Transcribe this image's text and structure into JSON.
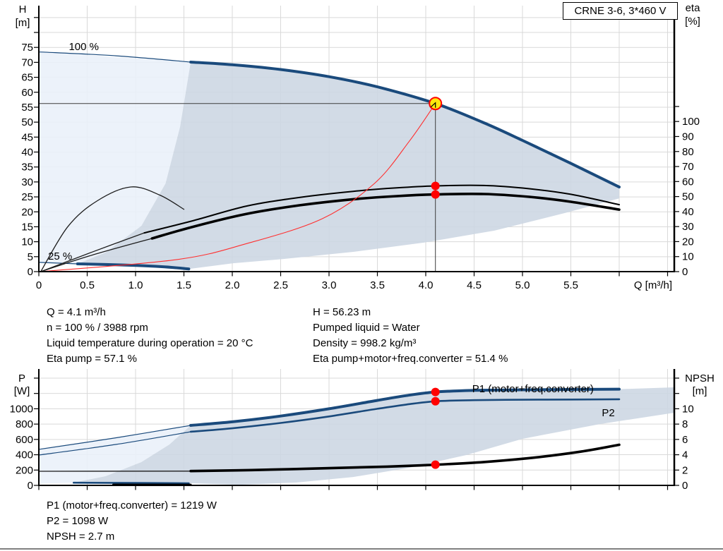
{
  "title_box": "CRNE 3-6, 3*460 V",
  "colors": {
    "curve_blue": "#1a4a7c",
    "envelope_dark": "#ccd6e3",
    "envelope_light": "#e9f0f9",
    "grid": "#d9d9d9",
    "duty_red": "#ff0000",
    "control_red": "#ff3030",
    "marker_yellow": "#ffe70d",
    "axis_black": "#000000",
    "ref_line": "#3c3c3c"
  },
  "chart_data": [
    {
      "type": "line",
      "id": "qh-chart",
      "x": {
        "label": "Q [m³/h]",
        "tick_values": [
          0,
          0.5,
          1,
          1.5,
          2,
          2.5,
          3,
          3.5,
          4,
          4.5,
          5,
          5.5
        ],
        "tick_labels": [
          "0",
          "0.5",
          "1.0",
          "1.5",
          "2.0",
          "2.5",
          "3.0",
          "3.5",
          "4.0",
          "4.5",
          "5.0",
          "5.5"
        ],
        "extra_ticks": [
          6,
          6.5
        ],
        "max": 6.57
      },
      "y_left": {
        "label": [
          "H",
          "[m]"
        ],
        "tick_values": [
          0,
          5,
          10,
          15,
          20,
          25,
          30,
          35,
          40,
          45,
          50,
          55,
          60,
          65,
          70,
          75
        ],
        "extra_ticks": [
          80,
          85
        ],
        "max": 88.9
      },
      "y_right": {
        "label": [
          "eta",
          "[%]"
        ],
        "tick_values": [
          0,
          10,
          20,
          30,
          40,
          50,
          60,
          70,
          80,
          90,
          100
        ],
        "extra_ticks": [
          110
        ],
        "max": 110
      },
      "annotations": [
        {
          "name": "speed-100-label",
          "text": "100 %",
          "q": 0.31,
          "h": 75.3
        },
        {
          "name": "speed-25-label",
          "text": "25 %",
          "q": 0.095,
          "h": 5.2
        }
      ],
      "areas": [
        {
          "name": "envelope-light",
          "axis": "H",
          "fill": "light",
          "points": [
            [
              0,
              73.5
            ],
            [
              1.57,
              70.1
            ],
            [
              1.46,
              48.4
            ],
            [
              1.31,
              29.5
            ],
            [
              1.06,
              15.3
            ],
            [
              0.69,
              6.4
            ],
            [
              0.4,
              2.6
            ],
            [
              0,
              3.1
            ]
          ]
        },
        {
          "name": "envelope-dark",
          "axis": "H",
          "fill": "dark",
          "points": [
            [
              1.57,
              70.1
            ],
            [
              2,
              69.2
            ],
            [
              2.5,
              67.6
            ],
            [
              3,
              65.2
            ],
            [
              3.5,
              61.8
            ],
            [
              4.1,
              56.23
            ],
            [
              4.6,
              49.8
            ],
            [
              5,
              43.9
            ],
            [
              5.5,
              36.2
            ],
            [
              6,
              28.3
            ],
            [
              6,
              24.5
            ],
            [
              5.44,
              19.6
            ],
            [
              4.71,
              13.7
            ],
            [
              3.98,
              9.7
            ],
            [
              3.25,
              6.6
            ],
            [
              2.52,
              4.2
            ],
            [
              2.01,
              2.8
            ],
            [
              1.55,
              0.9
            ],
            [
              1.3,
              1.6
            ],
            [
              0.9,
              2.2
            ],
            [
              0.4,
              2.6
            ],
            [
              0.69,
              6.4
            ],
            [
              1.06,
              15.3
            ],
            [
              1.31,
              29.5
            ],
            [
              1.46,
              48.4
            ]
          ]
        }
      ],
      "series": [
        {
          "name": "pump-curve-100-thin",
          "axis": "H",
          "style": "blueThin",
          "points": [
            [
              0,
              73.5
            ],
            [
              0.8,
              72.2
            ],
            [
              1.57,
              70.1
            ]
          ]
        },
        {
          "name": "pump-curve-100",
          "axis": "H",
          "style": "blueThick",
          "points": [
            [
              1.57,
              70.1
            ],
            [
              2,
              69.2
            ],
            [
              2.5,
              67.6
            ],
            [
              3,
              65.2
            ],
            [
              3.5,
              61.8
            ],
            [
              4.1,
              56.23
            ],
            [
              4.6,
              49.8
            ],
            [
              5,
              43.9
            ],
            [
              5.5,
              36.2
            ],
            [
              6,
              28.3
            ]
          ]
        },
        {
          "name": "pump-curve-25-thin",
          "axis": "H",
          "style": "blueThin",
          "points": [
            [
              0,
              3.1
            ],
            [
              0.4,
              2.6
            ]
          ]
        },
        {
          "name": "pump-curve-25",
          "axis": "H",
          "style": "blueThick",
          "points": [
            [
              0.4,
              2.6
            ],
            [
              0.9,
              2.2
            ],
            [
              1.3,
              1.6
            ],
            [
              1.55,
              0.9
            ]
          ]
        },
        {
          "name": "eta-pump-curve-low",
          "axis": "eta",
          "style": "blackThin",
          "points": [
            [
              0.02,
              0
            ],
            [
              0.55,
              13
            ],
            [
              1.09,
              25.8
            ]
          ]
        },
        {
          "name": "eta-total-curve-low",
          "axis": "eta",
          "style": "blackThin",
          "points": [
            [
              0.02,
              0
            ],
            [
              0.55,
              11
            ],
            [
              1.17,
              22.1
            ]
          ]
        },
        {
          "name": "eta-curve-25",
          "axis": "eta",
          "style": "blackThin",
          "points": [
            [
              0.02,
              0
            ],
            [
              0.3,
              30
            ],
            [
              0.6,
              47
            ],
            [
              0.95,
              56.4
            ],
            [
              1.25,
              51
            ],
            [
              1.5,
              41.5
            ]
          ]
        },
        {
          "name": "eta-pump-curve",
          "axis": "eta",
          "style": "blackMed",
          "points": [
            [
              1.09,
              25.8
            ],
            [
              1.6,
              34
            ],
            [
              2.15,
              43.7
            ],
            [
              2.7,
              49.5
            ],
            [
              3.25,
              53.5
            ],
            [
              3.7,
              55.8
            ],
            [
              4.1,
              57.1
            ],
            [
              4.6,
              57.4
            ],
            [
              5.07,
              55.2
            ],
            [
              5.5,
              51.5
            ],
            [
              6,
              44.6
            ]
          ]
        },
        {
          "name": "eta-total-curve",
          "axis": "eta",
          "style": "blackThick",
          "points": [
            [
              1.17,
              22.1
            ],
            [
              1.6,
              30
            ],
            [
              2.15,
              38.5
            ],
            [
              2.7,
              44.2
            ],
            [
              3.25,
              48.2
            ],
            [
              3.7,
              50.3
            ],
            [
              4.1,
              51.4
            ],
            [
              4.6,
              51.7
            ],
            [
              5.07,
              49.8
            ],
            [
              5.5,
              46.5
            ],
            [
              6,
              41.3
            ]
          ]
        },
        {
          "name": "control-curve",
          "axis": "H",
          "style": "redThin",
          "points": [
            [
              0.02,
              0
            ],
            [
              1.42,
              4.0
            ],
            [
              2.15,
              9.4
            ],
            [
              2.93,
              17.7
            ],
            [
              3.47,
              29.5
            ],
            [
              3.83,
              43.6
            ],
            [
              4.1,
              56.23
            ]
          ]
        }
      ],
      "duty": {
        "q": 4.1,
        "h": 56.23,
        "eta_pump": 57.1,
        "eta_total": 51.4
      }
    },
    {
      "type": "line",
      "id": "power-npsh-chart",
      "x": {
        "tick_values": [
          0,
          0.5,
          1,
          1.5,
          2,
          2.5,
          3,
          3.5,
          4,
          4.5,
          5,
          5.5
        ],
        "extra_ticks": [
          6,
          6.5
        ],
        "max": 6.57
      },
      "y_left": {
        "label": [
          "P",
          "[W]"
        ],
        "tick_values": [
          0,
          200,
          400,
          600,
          800,
          1000
        ],
        "extra_ticks": [
          1200,
          1400
        ],
        "max": 1520
      },
      "y_right": {
        "label": [
          "NPSH",
          "[m]"
        ],
        "tick_values": [
          0,
          2,
          4,
          6,
          8,
          10
        ],
        "extra_ticks": [
          12,
          14
        ],
        "max": 15.2
      },
      "curve_labels": [
        {
          "name": "p1-curve-label",
          "text": "P1 (motor+freq.converter)",
          "q": 4.48,
          "p": 1262
        },
        {
          "name": "p2-curve-label",
          "text": "P2",
          "q": 5.82,
          "p": 948
        }
      ],
      "areas": [
        {
          "name": "envelope-light-b",
          "axis": "P",
          "fill": "light",
          "points": [
            [
              0,
              470
            ],
            [
              0.8,
              622
            ],
            [
              1.57,
              783
            ],
            [
              1.35,
              534
            ],
            [
              1.06,
              304
            ],
            [
              0.69,
              120
            ],
            [
              0.36,
              37
            ],
            [
              0,
              18
            ]
          ]
        },
        {
          "name": "envelope-dark-b",
          "axis": "P",
          "fill": "dark",
          "points": [
            [
              0.36,
              37
            ],
            [
              0.69,
              120
            ],
            [
              1.06,
              304
            ],
            [
              1.35,
              534
            ],
            [
              1.57,
              783
            ],
            [
              2,
              830
            ],
            [
              2.5,
              905
            ],
            [
              3,
              1000
            ],
            [
              3.5,
              1110
            ],
            [
              3.8,
              1172
            ],
            [
              4.1,
              1219
            ],
            [
              4.5,
              1240
            ],
            [
              5,
              1248
            ],
            [
              5.5,
              1252
            ],
            [
              6,
              1256
            ],
            [
              6.57,
              1280
            ],
            [
              6.57,
              948
            ],
            [
              5.8,
              800
            ],
            [
              5.0,
              608
            ],
            [
              4.42,
              396
            ],
            [
              3.83,
              230
            ],
            [
              3.25,
              110
            ],
            [
              2.66,
              37
            ],
            [
              2.08,
              8
            ],
            [
              1.55,
              28
            ]
          ]
        }
      ],
      "series": [
        {
          "name": "p1-curve-thin",
          "axis": "P",
          "style": "blueThin",
          "points": [
            [
              0,
              470
            ],
            [
              0.8,
              622
            ],
            [
              1.57,
              783
            ]
          ]
        },
        {
          "name": "p1-curve",
          "axis": "P",
          "style": "blueThick",
          "points": [
            [
              1.57,
              783
            ],
            [
              2,
              830
            ],
            [
              2.5,
              905
            ],
            [
              3,
              1000
            ],
            [
              3.5,
              1110
            ],
            [
              3.8,
              1172
            ],
            [
              4.1,
              1219
            ],
            [
              4.5,
              1240
            ],
            [
              5,
              1248
            ],
            [
              5.5,
              1252
            ],
            [
              6,
              1256
            ]
          ]
        },
        {
          "name": "p2-curve-thin",
          "axis": "P",
          "style": "blueThin",
          "points": [
            [
              0,
              396
            ],
            [
              0.8,
              535
            ],
            [
              1.57,
              700
            ]
          ]
        },
        {
          "name": "p2-curve",
          "axis": "P",
          "style": "blueMed",
          "points": [
            [
              1.57,
              700
            ],
            [
              2,
              745
            ],
            [
              2.5,
              815
            ],
            [
              3,
              900
            ],
            [
              3.5,
              1000
            ],
            [
              3.8,
              1055
            ],
            [
              4.1,
              1098
            ],
            [
              4.5,
              1112
            ],
            [
              5,
              1118
            ],
            [
              5.5,
              1121
            ],
            [
              6,
              1124
            ]
          ]
        },
        {
          "name": "npsh-curve-low",
          "axis": "N",
          "style": "blackThin",
          "points": [
            [
              0,
              1.84
            ],
            [
              1.57,
              1.86
            ]
          ]
        },
        {
          "name": "npsh-curve",
          "axis": "N",
          "style": "blackThick",
          "points": [
            [
              1.57,
              1.87
            ],
            [
              2.2,
              2.0
            ],
            [
              3,
              2.25
            ],
            [
              3.6,
              2.45
            ],
            [
              4.1,
              2.7
            ],
            [
              4.6,
              3.05
            ],
            [
              5.1,
              3.6
            ],
            [
              5.6,
              4.4
            ],
            [
              6,
              5.3
            ]
          ]
        },
        {
          "name": "p1-curve-25",
          "axis": "P",
          "style": "blueMed",
          "points": [
            [
              0.36,
              35
            ],
            [
              1.0,
              32
            ],
            [
              1.55,
              28
            ]
          ]
        },
        {
          "name": "p2-curve-25",
          "axis": "P",
          "style": "blackMed2",
          "points": [
            [
              0.77,
              9
            ],
            [
              1.57,
              8
            ]
          ]
        }
      ],
      "duty": {
        "q": 4.1,
        "p1": 1219,
        "p2": 1098,
        "npsh": 2.7
      }
    }
  ],
  "info_top": {
    "left": [
      "Q = 4.1 m³/h",
      "n = 100 % / 3988 rpm",
      "Liquid temperature during operation = 20 °C",
      "Eta pump = 57.1 %"
    ],
    "right": [
      "H = 56.23 m",
      "Pumped liquid = Water",
      "Density = 998.2 kg/m³",
      "Eta pump+motor+freq.converter = 51.4 %"
    ]
  },
  "info_bottom": [
    "P1 (motor+freq.converter) = 1219 W",
    "P2 = 1098 W",
    "NPSH = 2.7 m"
  ]
}
